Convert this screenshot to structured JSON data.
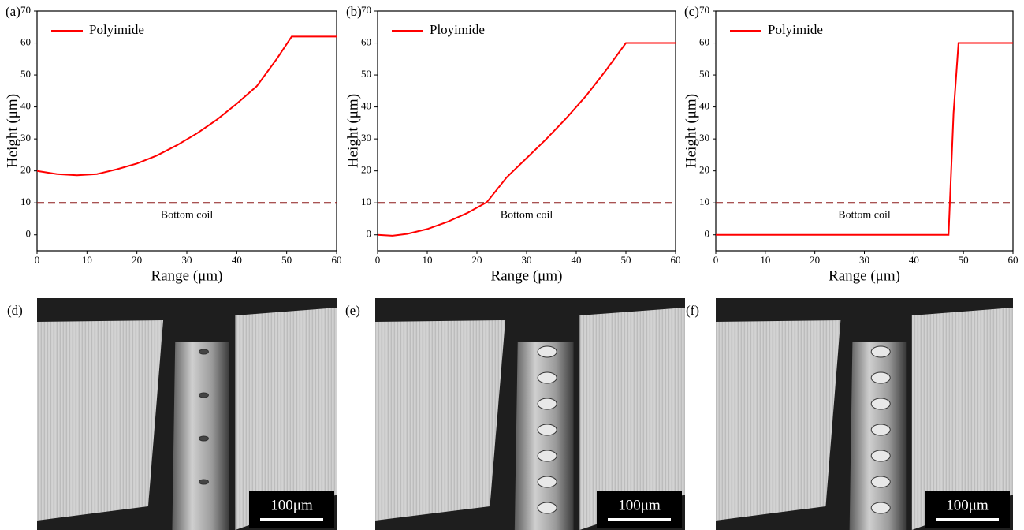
{
  "chart_data": [
    {
      "type": "line",
      "panel_label": "(a)",
      "x": [
        0,
        4,
        8,
        12,
        16,
        20,
        24,
        28,
        32,
        36,
        40,
        44,
        48,
        51,
        60
      ],
      "series": [
        {
          "name": "Polyimide",
          "color": "#ff0000",
          "values": [
            20,
            19,
            18.6,
            19,
            20.5,
            22.3,
            24.8,
            28,
            31.7,
            36,
            41,
            46.5,
            55,
            62,
            62
          ]
        }
      ],
      "reference_line": {
        "value": 10,
        "label": "Bottom coil",
        "color": "#8b1a1a"
      },
      "x_label": "Range (μm)",
      "y_label": "Height (μm)",
      "xlim": [
        0,
        60
      ],
      "ylim": [
        -5,
        70
      ],
      "xticks": [
        0,
        10,
        20,
        30,
        40,
        50,
        60
      ],
      "yticks": [
        0,
        10,
        20,
        30,
        40,
        50,
        60,
        70
      ],
      "legend": "upper left"
    },
    {
      "type": "line",
      "panel_label": "(b)",
      "x": [
        0,
        3,
        6,
        10,
        14,
        18,
        22,
        26,
        30,
        34,
        38,
        42,
        46,
        50,
        60
      ],
      "series": [
        {
          "name": "Ployimide",
          "color": "#ff0000",
          "values": [
            0,
            -0.3,
            0.3,
            1.8,
            4,
            6.8,
            10.2,
            18,
            24,
            30,
            36.5,
            43.5,
            51.5,
            60,
            60
          ]
        }
      ],
      "reference_line": {
        "value": 10,
        "label": "Bottom coil",
        "color": "#8b1a1a"
      },
      "x_label": "Range (μm)",
      "y_label": "Height (μm)",
      "xlim": [
        0,
        60
      ],
      "ylim": [
        -5,
        70
      ],
      "xticks": [
        0,
        10,
        20,
        30,
        40,
        50,
        60
      ],
      "yticks": [
        0,
        10,
        20,
        30,
        40,
        50,
        60,
        70
      ],
      "legend": "upper left"
    },
    {
      "type": "line",
      "panel_label": "(c)",
      "x": [
        0,
        47,
        48,
        49,
        60
      ],
      "series": [
        {
          "name": "Polyimide",
          "color": "#ff0000",
          "values": [
            0,
            0,
            38,
            60,
            60
          ]
        }
      ],
      "reference_line": {
        "value": 10,
        "label": "Bottom coil",
        "color": "#8b1a1a"
      },
      "x_label": "Range (μm)",
      "y_label": "Height (μm)",
      "xlim": [
        0,
        60
      ],
      "ylim": [
        -5,
        70
      ],
      "xticks": [
        0,
        10,
        20,
        30,
        40,
        50,
        60
      ],
      "yticks": [
        0,
        10,
        20,
        30,
        40,
        50,
        60,
        70
      ],
      "legend": "upper left"
    }
  ],
  "images": [
    {
      "label": "(d)",
      "scale_bar": "100μm"
    },
    {
      "label": "(e)",
      "scale_bar": "100μm"
    },
    {
      "label": "(f)",
      "scale_bar": "100μm"
    }
  ]
}
